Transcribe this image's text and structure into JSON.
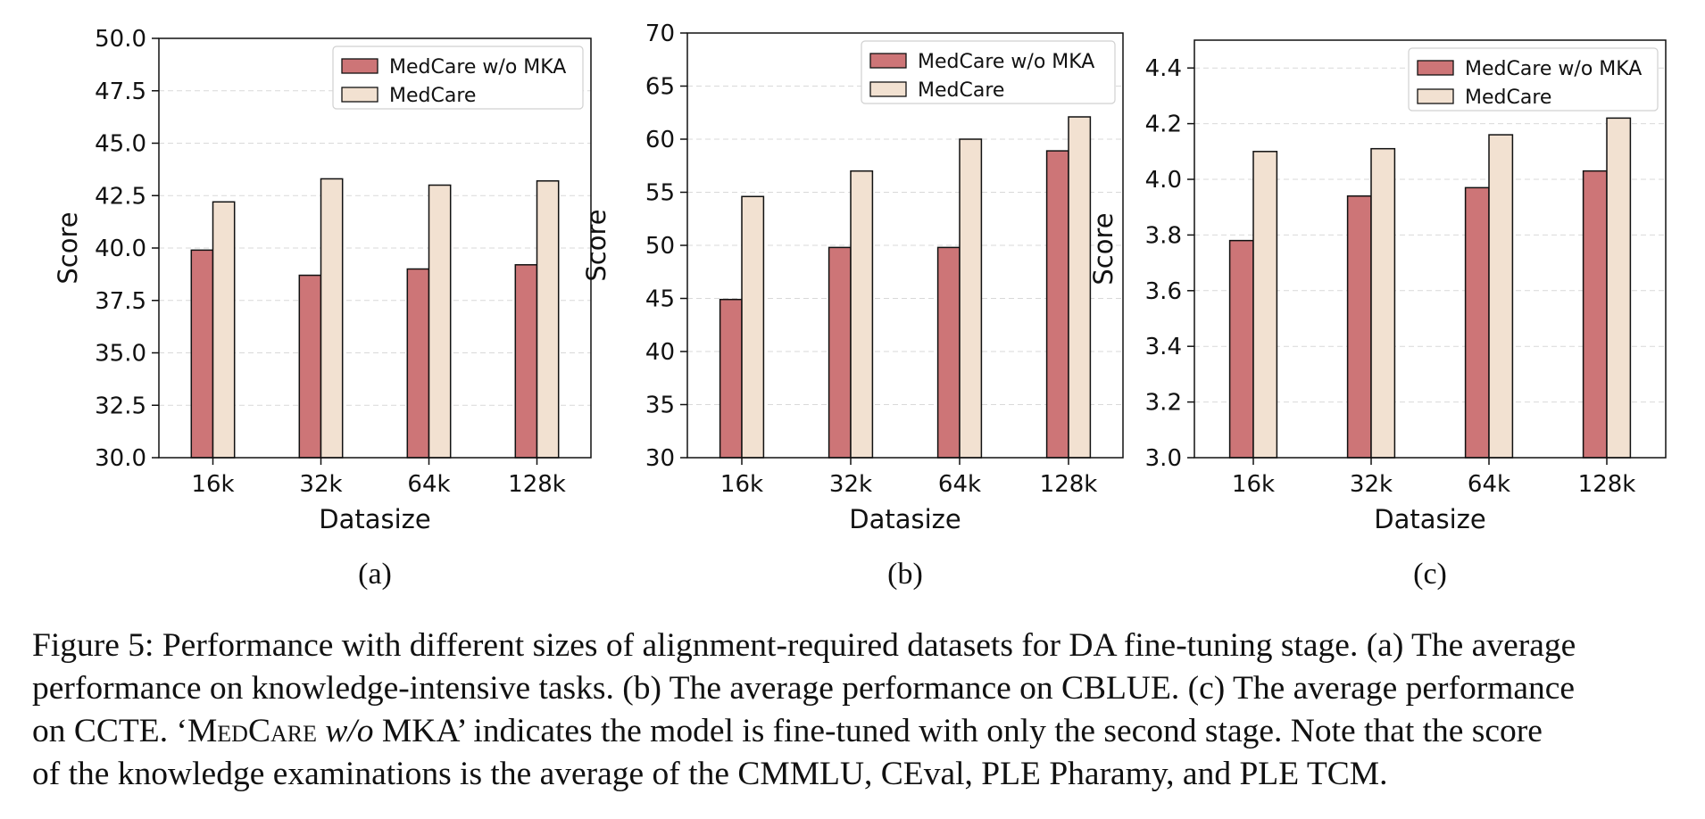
{
  "colors": {
    "series1": "#cd7577",
    "series2": "#f2e1d1",
    "edge": "#111111",
    "grid": "#d9d9d9"
  },
  "chart_data": [
    {
      "type": "bar",
      "sub_label": "(a)",
      "categories": [
        "16k",
        "32k",
        "64k",
        "128k"
      ],
      "xlabel": "Datasize",
      "ylabel": "Score",
      "ylim": [
        30.0,
        50.0
      ],
      "yticks": [
        "30.0",
        "32.5",
        "35.0",
        "37.5",
        "40.0",
        "42.5",
        "45.0",
        "47.5",
        "50.0"
      ],
      "grid": "horizontal dashed",
      "legend": "top-right",
      "series": [
        {
          "name": "MedCare w/o MKA",
          "values": [
            39.9,
            38.7,
            39.0,
            39.2
          ]
        },
        {
          "name": "MedCare",
          "values": [
            42.2,
            43.3,
            43.0,
            43.2
          ]
        }
      ]
    },
    {
      "type": "bar",
      "sub_label": "(b)",
      "categories": [
        "16k",
        "32k",
        "64k",
        "128k"
      ],
      "xlabel": "Datasize",
      "ylabel": "Score",
      "ylim": [
        30,
        70
      ],
      "yticks": [
        "30",
        "35",
        "40",
        "45",
        "50",
        "55",
        "60",
        "65",
        "70"
      ],
      "grid": "horizontal dashed",
      "legend": "top-right",
      "series": [
        {
          "name": "MedCare w/o MKA",
          "values": [
            44.9,
            49.8,
            49.8,
            58.9
          ]
        },
        {
          "name": "MedCare",
          "values": [
            54.6,
            57.0,
            60.0,
            62.1
          ]
        }
      ]
    },
    {
      "type": "bar",
      "sub_label": "(c)",
      "categories": [
        "16k",
        "32k",
        "64k",
        "128k"
      ],
      "xlabel": "Datasize",
      "ylabel": "Score",
      "ylim": [
        3.0,
        4.5
      ],
      "yticks": [
        "3.0",
        "3.2",
        "3.4",
        "3.6",
        "3.8",
        "4.0",
        "4.2",
        "4.4"
      ],
      "grid": "horizontal dashed",
      "legend": "top-right",
      "series": [
        {
          "name": "MedCare w/o MKA",
          "values": [
            3.78,
            3.94,
            3.97,
            4.03
          ]
        },
        {
          "name": "MedCare",
          "values": [
            4.1,
            4.11,
            4.16,
            4.22
          ]
        }
      ]
    }
  ],
  "caption": {
    "line1": "Figure 5: Performance with different sizes of alignment-required datasets for DA fine-tuning stage. (a) The average",
    "line2": "performance on knowledge-intensive tasks. (b) The average performance on CBLUE. (c) The average performance",
    "line3_a": "on CCTE. ‘",
    "line3_model": "MedCare",
    "line3_b": " ",
    "line3_wo": "w/o",
    "line3_c": " MKA’ indicates the model is fine-tuned with only the second stage. Note that the score",
    "line4": "of the knowledge examinations is the average of the CMMLU, CEval, PLE Pharamy, and PLE TCM."
  }
}
